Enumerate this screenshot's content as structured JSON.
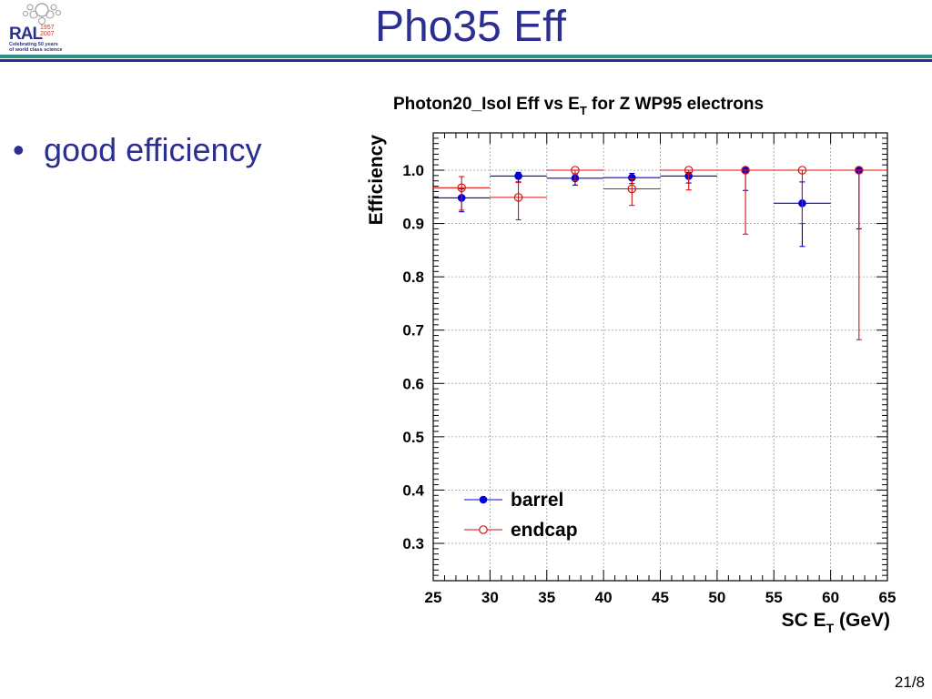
{
  "logo": {
    "text": "RAL",
    "years": [
      "1957",
      "2007"
    ],
    "tagline": [
      "Celebrating 50 years",
      "of world class science"
    ]
  },
  "slide": {
    "title": "Pho35 Eff",
    "bullets": [
      "good efficiency"
    ],
    "page_number": "21/8"
  },
  "colors": {
    "title": "#2b2f8f",
    "rule_teal": "#2e8f86",
    "rule_navy": "#2b2f8f",
    "barrel": "#0000dd",
    "endcap": "#dd1111"
  },
  "chart_data": {
    "type": "scatter",
    "title": "Photon20_Isol Eff vs E",
    "title_sub": "T",
    "title_suffix": " for Z WP95 electrons",
    "xlabel": "SC E",
    "xlabel_sub": "T",
    "xlabel_suffix": " (GeV)",
    "ylabel": "Efficiency",
    "xlim": [
      25,
      65
    ],
    "ylim": [
      0.23,
      1.07
    ],
    "xticks": [
      25,
      30,
      35,
      40,
      45,
      50,
      55,
      60,
      65
    ],
    "yticks": [
      0.3,
      0.4,
      0.5,
      0.6,
      0.7,
      0.8,
      0.9,
      1.0
    ],
    "ytick_labels": [
      "0.3",
      "0.4",
      "0.5",
      "0.6",
      "0.7",
      "0.8",
      "0.9",
      "1.0"
    ],
    "grid": true,
    "legend_position": "bottom-left",
    "series": [
      {
        "name": "barrel",
        "marker": "filled-circle",
        "points": [
          {
            "x": 27.5,
            "xlo": 25,
            "xhi": 30,
            "y": 0.948,
            "ylo": 0.922,
            "yhi": 0.965
          },
          {
            "x": 32.5,
            "xlo": 30,
            "xhi": 35,
            "y": 0.989,
            "ylo": 0.978,
            "yhi": 0.996
          },
          {
            "x": 37.5,
            "xlo": 35,
            "xhi": 40,
            "y": 0.985,
            "ylo": 0.972,
            "yhi": 0.993
          },
          {
            "x": 42.5,
            "xlo": 40,
            "xhi": 45,
            "y": 0.986,
            "ylo": 0.975,
            "yhi": 0.994
          },
          {
            "x": 47.5,
            "xlo": 45,
            "xhi": 50,
            "y": 0.989,
            "ylo": 0.976,
            "yhi": 0.996
          },
          {
            "x": 52.5,
            "xlo": 50,
            "xhi": 55,
            "y": 1.0,
            "ylo": 0.962,
            "yhi": 1.0
          },
          {
            "x": 57.5,
            "xlo": 55,
            "xhi": 60,
            "y": 0.938,
            "ylo": 0.857,
            "yhi": 0.978
          },
          {
            "x": 62.5,
            "xlo": 60,
            "xhi": 65,
            "y": 1.0,
            "ylo": 0.89,
            "yhi": 1.0
          }
        ]
      },
      {
        "name": "endcap",
        "marker": "open-circle",
        "points": [
          {
            "x": 27.5,
            "xlo": 25,
            "xhi": 30,
            "y": 0.967,
            "ylo": 0.925,
            "yhi": 0.988
          },
          {
            "x": 32.5,
            "xlo": 30,
            "xhi": 35,
            "y": 0.949,
            "ylo": 0.907,
            "yhi": 0.977
          },
          {
            "x": 37.5,
            "xlo": 35,
            "xhi": 40,
            "y": 1.0,
            "ylo": 0.98,
            "yhi": 1.0
          },
          {
            "x": 42.5,
            "xlo": 40,
            "xhi": 45,
            "y": 0.965,
            "ylo": 0.934,
            "yhi": 0.984
          },
          {
            "x": 47.5,
            "xlo": 45,
            "xhi": 50,
            "y": 1.0,
            "ylo": 0.963,
            "yhi": 1.0
          },
          {
            "x": 52.5,
            "xlo": 50,
            "xhi": 55,
            "y": 1.0,
            "ylo": 0.88,
            "yhi": 1.0
          },
          {
            "x": 57.5,
            "xlo": 55,
            "xhi": 60,
            "y": 1.0,
            "ylo": 0.9,
            "yhi": 1.0
          },
          {
            "x": 62.5,
            "xlo": 60,
            "xhi": 65,
            "y": 1.0,
            "ylo": 0.682,
            "yhi": 1.0
          }
        ]
      }
    ]
  }
}
